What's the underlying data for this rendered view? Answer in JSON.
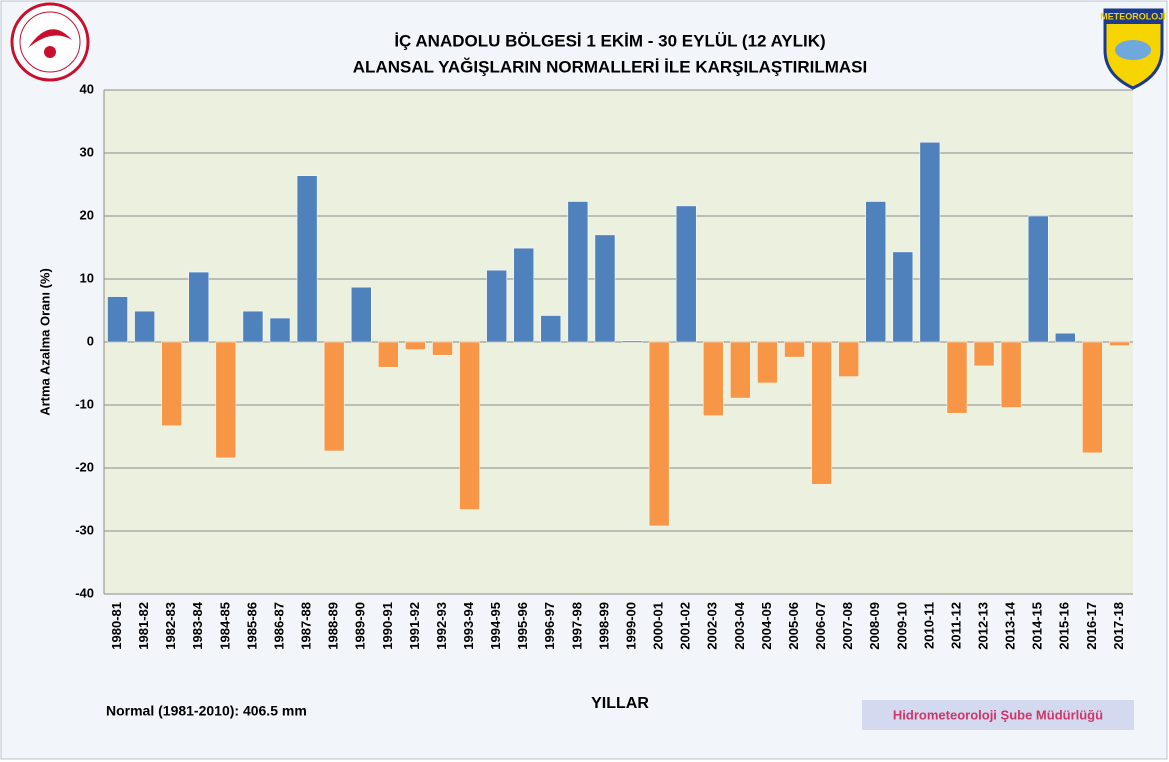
{
  "chart_data": {
    "type": "bar",
    "title": [
      "İÇ ANADOLU BÖLGESİ  1 EKİM - 30 EYLÜL (12 AYLIK)",
      "ALANSAL YAĞIŞLARIN NORMALLERİ İLE KARŞILAŞTIRILMASI"
    ],
    "y_label": "Artma Azalma Oranı (%)",
    "x_label": "YILLAR",
    "note": "Normal (1981-2010): 406.5 mm",
    "footer": "Hidrometeoroloji Şube Müdürlüğü",
    "logo_text": "METEOROLOJİ",
    "categories": [
      "1980-81",
      "1981-82",
      "1982-83",
      "1983-84",
      "1984-85",
      "1985-86",
      "1986-87",
      "1987-88",
      "1988-89",
      "1989-90",
      "1990-91",
      "1991-92",
      "1992-93",
      "1993-94",
      "1994-95",
      "1995-96",
      "1996-97",
      "1997-98",
      "1998-99",
      "1999-00",
      "2000-01",
      "2001-02",
      "2002-03",
      "2003-04",
      "2004-05",
      "2005-06",
      "2006-07",
      "2007-08",
      "2008-09",
      "2009-10",
      "2010-11",
      "2011-12",
      "2012-13",
      "2013-14",
      "2014-15",
      "2015-16",
      "2016-17",
      "2017-18"
    ],
    "values": [
      7.2,
      4.9,
      -13.3,
      11.1,
      -18.4,
      4.9,
      3.8,
      26.4,
      -17.3,
      8.7,
      -4.0,
      -1.2,
      -2.1,
      -26.6,
      11.4,
      14.9,
      4.2,
      22.3,
      17.0,
      0.2,
      -29.2,
      21.6,
      -11.7,
      -8.9,
      -6.5,
      -2.4,
      -22.6,
      -5.5,
      22.3,
      14.3,
      31.7,
      -11.3,
      -3.8,
      -10.4,
      20.0,
      1.4,
      -17.6,
      -0.6
    ],
    "positive_color": "#4f81bd",
    "negative_color": "#f79646",
    "ylim": [
      -40,
      40
    ],
    "yticks": [
      -40,
      -30,
      -20,
      -10,
      0,
      10,
      20,
      30,
      40
    ],
    "grid": true
  }
}
